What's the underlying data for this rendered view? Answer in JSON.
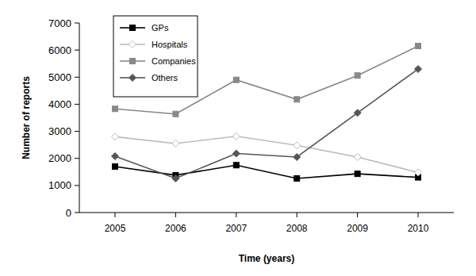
{
  "chart_data": {
    "type": "line",
    "x_label": "Time (years)",
    "y_label": "Number of reports",
    "categories": [
      "2005",
      "2006",
      "2007",
      "2008",
      "2009",
      "2010"
    ],
    "series": [
      {
        "name": "GPs",
        "color": "#000000",
        "marker": "square",
        "values": [
          1700,
          1380,
          1750,
          1260,
          1430,
          1300
        ]
      },
      {
        "name": "Hospitals",
        "color": "#bbbbbb",
        "marker": "diamond-open",
        "values": [
          2800,
          2550,
          2820,
          2480,
          2050,
          1480
        ]
      },
      {
        "name": "Companies",
        "color": "#888888",
        "marker": "square",
        "values": [
          3830,
          3640,
          4900,
          4180,
          5060,
          6150
        ]
      },
      {
        "name": "Others",
        "color": "#555555",
        "marker": "diamond",
        "values": [
          2080,
          1260,
          2180,
          2050,
          3680,
          5300
        ]
      }
    ],
    "ylim": [
      0,
      7000
    ],
    "yticks": [
      0,
      1000,
      2000,
      3000,
      4000,
      5000,
      6000,
      7000
    ],
    "grid": false,
    "legend": "upper left"
  }
}
